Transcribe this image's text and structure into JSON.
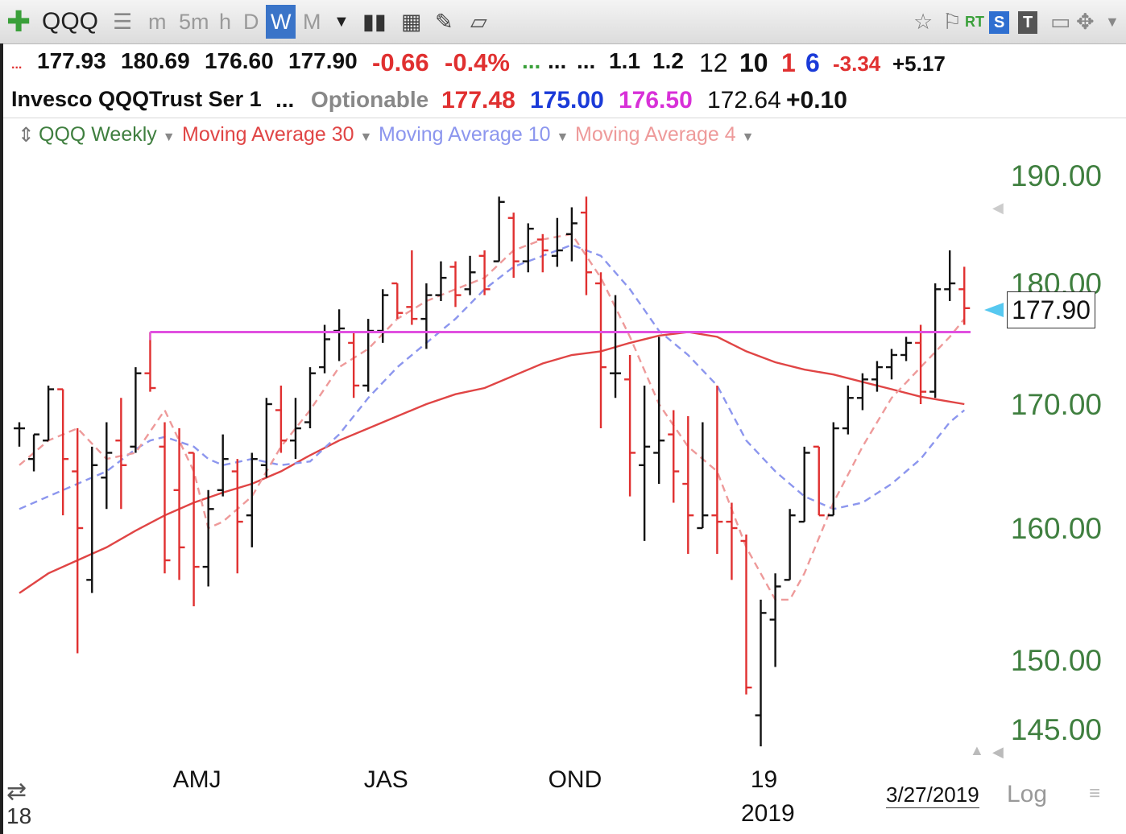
{
  "toolbar": {
    "add_icon": "plus-icon",
    "symbol": "QQQ",
    "list_icon": "list-icon",
    "intervals": [
      "m",
      "5m",
      "h",
      "D",
      "W",
      "M"
    ],
    "active_interval": "W",
    "icons": [
      "dropdown-arrow-icon",
      "bar-chart-icon",
      "grid-icon",
      "pencil-icon",
      "note-icon",
      "star-icon",
      "flag-icon"
    ],
    "rt_label": "RT",
    "s_label": "S",
    "t_label": "T"
  },
  "quote_line1": {
    "dots": "...",
    "open": "177.93",
    "high": "180.69",
    "low": "176.60",
    "close": "177.90",
    "change": "-0.66",
    "change_pct": "-0.4%",
    "dots_green": "...",
    "dots2": "...",
    "dots3": "...",
    "v1": "1.1",
    "v2": "1.2",
    "v3": "12",
    "v4": "10",
    "v5": "1",
    "v6": "6",
    "v7": "-3.34",
    "v8": "+5.17"
  },
  "quote_line2": {
    "name": "Invesco QQQTrust Ser 1",
    "dots": "...",
    "optionable": "Optionable",
    "red_val": "177.48",
    "blue_val": "175.00",
    "magenta_val": "176.50",
    "plain_val": "172.64",
    "delta": "+0.10"
  },
  "legend": {
    "main": "QQQ Weekly",
    "ma30": "Moving Average 30",
    "ma10": "Moving Average 10",
    "ma4": "Moving Average 4"
  },
  "price_label": "177.90",
  "footer": {
    "date": "3/27/2019",
    "log": "Log",
    "year_left": "18",
    "year_right": "2019"
  },
  "colors": {
    "up": "#111111",
    "down": "#e03030",
    "ma30": "#e04545",
    "ma10": "#8c96ee",
    "ma4": "#ee9a9a",
    "hline": "#e050e0",
    "axis_text": "#3f7f3f"
  },
  "chart_data": {
    "type": "ohlc",
    "title": "QQQ Weekly",
    "y_ticks": [
      190,
      180,
      170,
      160,
      150,
      145
    ],
    "y_tick_labels": [
      "190.00",
      "180.00",
      "170.00",
      "160.00",
      "150.00",
      "145.00"
    ],
    "x_labels": [
      {
        "label": "AMJ",
        "index": 12
      },
      {
        "label": "JAS",
        "index": 25
      },
      {
        "label": "OND",
        "index": 38
      },
      {
        "label": "19",
        "index": 51
      }
    ],
    "horizontal_line": 175.9,
    "candles": [
      {
        "o": 168.0,
        "h": 168.5,
        "l": 166.5,
        "c": 168.0
      },
      {
        "o": 165.5,
        "h": 167.5,
        "l": 164.5,
        "c": 167.5
      },
      {
        "o": 167.0,
        "h": 171.5,
        "l": 167.0,
        "c": 171.2
      },
      {
        "o": 171.2,
        "h": 171.2,
        "l": 161.0,
        "c": 165.5
      },
      {
        "o": 164.5,
        "h": 168.0,
        "l": 150.5,
        "c": 160.0
      },
      {
        "o": 156.0,
        "h": 166.5,
        "l": 155.0,
        "c": 165.0
      },
      {
        "o": 164.0,
        "h": 168.5,
        "l": 161.5,
        "c": 166.0
      },
      {
        "o": 167.0,
        "h": 170.5,
        "l": 161.5,
        "c": 165.0
      },
      {
        "o": 166.5,
        "h": 173.0,
        "l": 166.0,
        "c": 172.5
      },
      {
        "o": 172.5,
        "h": 175.9,
        "l": 171.0,
        "c": 171.3
      },
      {
        "o": 166.5,
        "h": 168.5,
        "l": 156.5,
        "c": 157.5
      },
      {
        "o": 163.0,
        "h": 168.0,
        "l": 156.0,
        "c": 158.5
      },
      {
        "o": 166.0,
        "h": 166.0,
        "l": 154.0,
        "c": 157.0
      },
      {
        "o": 157.0,
        "h": 163.0,
        "l": 155.5,
        "c": 161.5
      },
      {
        "o": 163.0,
        "h": 167.5,
        "l": 162.5,
        "c": 165.5
      },
      {
        "o": 164.5,
        "h": 165.5,
        "l": 156.5,
        "c": 160.5
      },
      {
        "o": 161.0,
        "h": 166.0,
        "l": 158.5,
        "c": 165.5
      },
      {
        "o": 165.0,
        "h": 170.5,
        "l": 164.0,
        "c": 170.0
      },
      {
        "o": 169.5,
        "h": 171.5,
        "l": 166.0,
        "c": 167.0
      },
      {
        "o": 167.0,
        "h": 170.5,
        "l": 165.5,
        "c": 168.0
      },
      {
        "o": 168.5,
        "h": 173.0,
        "l": 168.0,
        "c": 172.5
      },
      {
        "o": 173.0,
        "h": 176.5,
        "l": 172.5,
        "c": 175.3
      },
      {
        "o": 176.0,
        "h": 177.8,
        "l": 173.5,
        "c": 176.2
      },
      {
        "o": 175.0,
        "h": 176.0,
        "l": 170.5,
        "c": 171.5
      },
      {
        "o": 171.5,
        "h": 177.0,
        "l": 171.0,
        "c": 176.0
      },
      {
        "o": 176.0,
        "h": 179.5,
        "l": 175.0,
        "c": 179.0
      },
      {
        "o": 180.0,
        "h": 180.0,
        "l": 177.0,
        "c": 177.5
      },
      {
        "o": 178.0,
        "h": 183.0,
        "l": 176.5,
        "c": 177.0
      },
      {
        "o": 177.0,
        "h": 180.0,
        "l": 174.5,
        "c": 179.0
      },
      {
        "o": 179.0,
        "h": 182.0,
        "l": 178.5,
        "c": 180.5
      },
      {
        "o": 181.5,
        "h": 182.0,
        "l": 178.0,
        "c": 179.0
      },
      {
        "o": 179.5,
        "h": 182.5,
        "l": 179.0,
        "c": 181.0
      },
      {
        "o": 182.5,
        "h": 183.0,
        "l": 179.0,
        "c": 179.5
      },
      {
        "o": 182.0,
        "h": 188.0,
        "l": 182.0,
        "c": 187.5
      },
      {
        "o": 186.0,
        "h": 186.5,
        "l": 180.5,
        "c": 182.0
      },
      {
        "o": 182.0,
        "h": 185.5,
        "l": 181.0,
        "c": 185.0
      },
      {
        "o": 184.0,
        "h": 184.5,
        "l": 181.0,
        "c": 183.0
      },
      {
        "o": 182.5,
        "h": 186.0,
        "l": 181.5,
        "c": 183.0
      },
      {
        "o": 184.5,
        "h": 187.0,
        "l": 182.0,
        "c": 185.5
      },
      {
        "o": 186.5,
        "h": 188.0,
        "l": 179.0,
        "c": 181.0
      },
      {
        "o": 180.0,
        "h": 181.0,
        "l": 168.0,
        "c": 173.0
      },
      {
        "o": 172.5,
        "h": 179.0,
        "l": 170.5,
        "c": 172.5
      },
      {
        "o": 172.0,
        "h": 174.0,
        "l": 162.5,
        "c": 166.0
      },
      {
        "o": 165.0,
        "h": 171.5,
        "l": 159.0,
        "c": 166.5
      },
      {
        "o": 166.0,
        "h": 175.5,
        "l": 163.5,
        "c": 167.0
      },
      {
        "o": 167.5,
        "h": 169.5,
        "l": 162.0,
        "c": 164.5
      },
      {
        "o": 163.5,
        "h": 169.0,
        "l": 158.0,
        "c": 161.0
      },
      {
        "o": 160.0,
        "h": 168.5,
        "l": 160.0,
        "c": 161.0
      },
      {
        "o": 161.0,
        "h": 171.5,
        "l": 158.0,
        "c": 160.5
      },
      {
        "o": 160.5,
        "h": 162.0,
        "l": 156.0,
        "c": 160.0
      },
      {
        "o": 159.0,
        "h": 159.5,
        "l": 147.5,
        "c": 148.0
      },
      {
        "o": 146.0,
        "h": 154.5,
        "l": 143.8,
        "c": 153.5
      },
      {
        "o": 153.0,
        "h": 156.5,
        "l": 149.5,
        "c": 155.5
      },
      {
        "o": 156.0,
        "h": 161.5,
        "l": 156.0,
        "c": 161.0
      },
      {
        "o": 160.5,
        "h": 166.5,
        "l": 160.5,
        "c": 166.0
      },
      {
        "o": 166.5,
        "h": 166.5,
        "l": 161.0,
        "c": 161.0
      },
      {
        "o": 161.0,
        "h": 168.5,
        "l": 161.0,
        "c": 168.0
      },
      {
        "o": 168.0,
        "h": 171.5,
        "l": 167.5,
        "c": 170.5
      },
      {
        "o": 170.5,
        "h": 172.5,
        "l": 169.5,
        "c": 172.0
      },
      {
        "o": 172.0,
        "h": 173.5,
        "l": 171.0,
        "c": 173.0
      },
      {
        "o": 173.0,
        "h": 174.5,
        "l": 172.0,
        "c": 174.0
      },
      {
        "o": 174.0,
        "h": 175.5,
        "l": 173.5,
        "c": 175.0
      },
      {
        "o": 175.0,
        "h": 176.5,
        "l": 170.0,
        "c": 171.0
      },
      {
        "o": 171.0,
        "h": 180.0,
        "l": 170.5,
        "c": 179.5
      },
      {
        "o": 179.5,
        "h": 183.0,
        "l": 178.5,
        "c": 180.0
      },
      {
        "o": 179.5,
        "h": 181.5,
        "l": 176.5,
        "c": 177.9
      }
    ],
    "ma30": [
      [
        0,
        155.0
      ],
      [
        2,
        156.5
      ],
      [
        4,
        157.5
      ],
      [
        6,
        158.5
      ],
      [
        8,
        159.8
      ],
      [
        10,
        161.0
      ],
      [
        12,
        162.0
      ],
      [
        14,
        162.8
      ],
      [
        16,
        163.5
      ],
      [
        18,
        164.5
      ],
      [
        20,
        165.8
      ],
      [
        22,
        167.0
      ],
      [
        24,
        168.0
      ],
      [
        26,
        169.0
      ],
      [
        28,
        170.0
      ],
      [
        30,
        170.8
      ],
      [
        32,
        171.3
      ],
      [
        34,
        172.3
      ],
      [
        36,
        173.3
      ],
      [
        38,
        174.0
      ],
      [
        40,
        174.3
      ],
      [
        42,
        175.0
      ],
      [
        44,
        175.6
      ],
      [
        46,
        175.9
      ],
      [
        48,
        175.5
      ],
      [
        50,
        174.3
      ],
      [
        52,
        173.4
      ],
      [
        54,
        172.8
      ],
      [
        56,
        172.4
      ],
      [
        58,
        171.8
      ],
      [
        60,
        171.2
      ],
      [
        62,
        170.6
      ],
      [
        64,
        170.2
      ],
      [
        65,
        170.0
      ]
    ],
    "ma10": [
      [
        0,
        161.5
      ],
      [
        2,
        162.5
      ],
      [
        4,
        163.5
      ],
      [
        6,
        164.5
      ],
      [
        8,
        166.3
      ],
      [
        9,
        167.0
      ],
      [
        10,
        167.3
      ],
      [
        12,
        166.5
      ],
      [
        13,
        165.5
      ],
      [
        14,
        165.0
      ],
      [
        16,
        165.5
      ],
      [
        18,
        165.0
      ],
      [
        20,
        165.3
      ],
      [
        22,
        167.5
      ],
      [
        24,
        170.5
      ],
      [
        26,
        173.0
      ],
      [
        28,
        175.0
      ],
      [
        30,
        177.0
      ],
      [
        32,
        179.5
      ],
      [
        34,
        181.5
      ],
      [
        36,
        182.5
      ],
      [
        38,
        183.5
      ],
      [
        40,
        182.5
      ],
      [
        42,
        179.5
      ],
      [
        44,
        176.0
      ],
      [
        46,
        174.0
      ],
      [
        48,
        171.5
      ],
      [
        50,
        167.0
      ],
      [
        52,
        164.5
      ],
      [
        54,
        162.5
      ],
      [
        56,
        161.5
      ],
      [
        58,
        162.0
      ],
      [
        60,
        163.5
      ],
      [
        62,
        165.5
      ],
      [
        64,
        168.5
      ],
      [
        65,
        169.5
      ]
    ],
    "ma4": [
      [
        0,
        165.0
      ],
      [
        2,
        167.0
      ],
      [
        4,
        168.0
      ],
      [
        6,
        165.5
      ],
      [
        8,
        166.0
      ],
      [
        10,
        169.5
      ],
      [
        12,
        164.5
      ],
      [
        13,
        160.0
      ],
      [
        14,
        160.5
      ],
      [
        16,
        162.5
      ],
      [
        18,
        166.5
      ],
      [
        20,
        169.5
      ],
      [
        22,
        173.0
      ],
      [
        24,
        174.5
      ],
      [
        26,
        177.0
      ],
      [
        28,
        178.5
      ],
      [
        30,
        179.5
      ],
      [
        32,
        180.5
      ],
      [
        34,
        183.0
      ],
      [
        36,
        184.0
      ],
      [
        38,
        184.5
      ],
      [
        40,
        180.5
      ],
      [
        42,
        175.5
      ],
      [
        44,
        170.0
      ],
      [
        46,
        166.5
      ],
      [
        48,
        164.5
      ],
      [
        50,
        158.5
      ],
      [
        52,
        154.5
      ],
      [
        53,
        154.5
      ],
      [
        54,
        156.5
      ],
      [
        56,
        162.0
      ],
      [
        58,
        166.5
      ],
      [
        60,
        170.5
      ],
      [
        62,
        173.0
      ],
      [
        64,
        175.5
      ],
      [
        65,
        177.0
      ]
    ]
  }
}
